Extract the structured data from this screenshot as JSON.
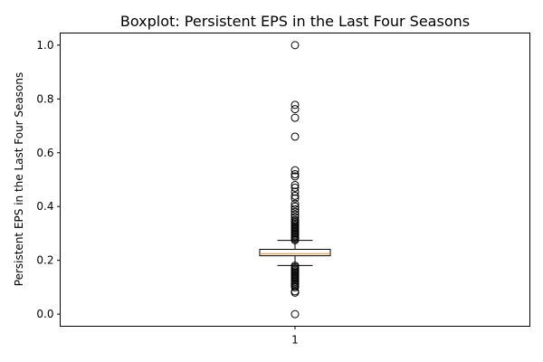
{
  "chart_data": {
    "type": "boxplot",
    "title": "Boxplot:  Persistent EPS in the Last Four Seasons",
    "ylabel": "Persistent EPS in the Last Four Seasons",
    "xlabel": "",
    "ylim": [
      -0.045,
      1.045
    ],
    "y_ticks": [
      0.0,
      0.2,
      0.4,
      0.6,
      0.8,
      1.0
    ],
    "y_tick_labels": [
      "0.0",
      "0.2",
      "0.4",
      "0.6",
      "0.8",
      "1.0"
    ],
    "x_tick_labels": [
      "1"
    ],
    "grid": false,
    "box": {
      "category": "1",
      "q1": 0.217,
      "median": 0.225,
      "q3": 0.241,
      "whisker_low": 0.181,
      "whisker_high": 0.274,
      "fliers": [
        1.0,
        0.778,
        0.762,
        0.73,
        0.66,
        0.535,
        0.52,
        0.512,
        0.48,
        0.47,
        0.455,
        0.44,
        0.43,
        0.41,
        0.4,
        0.39,
        0.38,
        0.37,
        0.36,
        0.35,
        0.345,
        0.34,
        0.335,
        0.33,
        0.325,
        0.32,
        0.315,
        0.31,
        0.305,
        0.3,
        0.295,
        0.29,
        0.285,
        0.28,
        0.275,
        0.18,
        0.175,
        0.17,
        0.165,
        0.16,
        0.155,
        0.15,
        0.145,
        0.14,
        0.135,
        0.13,
        0.125,
        0.12,
        0.115,
        0.11,
        0.105,
        0.1,
        0.085,
        0.08,
        0.0
      ]
    },
    "colors": {
      "box_edge": "#000000",
      "median": "#ff7f0e",
      "flier_edge": "#000000"
    }
  }
}
